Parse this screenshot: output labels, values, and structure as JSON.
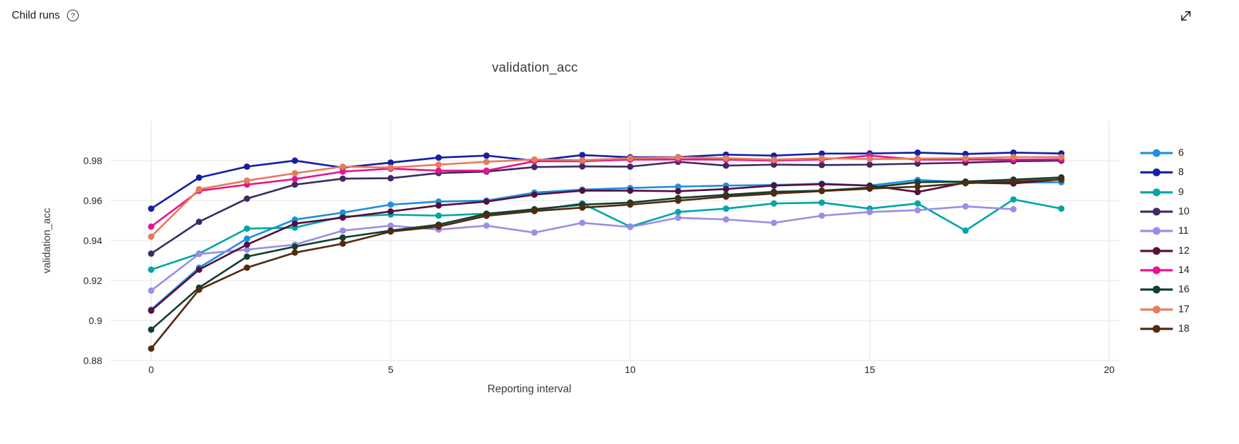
{
  "header": {
    "title": "Child runs",
    "help_icon": "question-mark-circle",
    "expand_icon": "diagonal-expand-arrow"
  },
  "chart_data": {
    "type": "line",
    "title": "validation_acc",
    "xlabel": "Reporting interval",
    "ylabel": "validation_acc",
    "xlim": [
      -0.85,
      20.2
    ],
    "ylim": [
      0.88,
      1.0
    ],
    "x_ticks": [
      0,
      5,
      10,
      15,
      20
    ],
    "x_tick_labels": [
      "0",
      "5",
      "10",
      "15",
      "20"
    ],
    "y_ticks": [
      0.88,
      0.9,
      0.92,
      0.94,
      0.96,
      0.98
    ],
    "y_tick_labels": [
      "0.88",
      "0.9",
      "0.92",
      "0.94",
      "0.96",
      "0.98"
    ],
    "grid": true,
    "grid_color": "#e9e9e9",
    "legend_position": "right",
    "x": [
      0,
      1,
      2,
      3,
      4,
      5,
      6,
      7,
      8,
      9,
      10,
      11,
      12,
      13,
      14,
      15,
      16,
      17,
      18,
      19
    ],
    "series": [
      {
        "name": "6",
        "color": "#1E8FE0",
        "values": [
          0.9055,
          0.9265,
          0.941,
          0.9505,
          0.954,
          0.958,
          0.9595,
          0.96,
          0.964,
          0.9655,
          0.9663,
          0.967,
          0.9675,
          0.9678,
          0.9685,
          0.9675,
          0.9703,
          0.9692,
          0.969,
          0.9692
        ]
      },
      {
        "name": "8",
        "color": "#161FA5",
        "values": [
          0.956,
          0.9715,
          0.977,
          0.98,
          0.9765,
          0.979,
          0.9815,
          0.9825,
          0.98,
          0.9828,
          0.9817,
          0.9818,
          0.983,
          0.9825,
          0.9835,
          0.9836,
          0.984,
          0.9833,
          0.984,
          0.9836
        ]
      },
      {
        "name": "9",
        "color": "#03A5A5",
        "values": [
          0.9255,
          0.9335,
          0.946,
          0.9465,
          0.952,
          0.953,
          0.9525,
          0.9535,
          0.9551,
          0.9586,
          0.947,
          0.9543,
          0.956,
          0.9586,
          0.959,
          0.956,
          0.9586,
          0.945,
          0.9606,
          0.956
        ]
      },
      {
        "name": "10",
        "color": "#3F2B63",
        "values": [
          0.9335,
          0.9494,
          0.961,
          0.968,
          0.971,
          0.9712,
          0.9738,
          0.9745,
          0.9768,
          0.9771,
          0.977,
          0.9794,
          0.9775,
          0.978,
          0.9778,
          0.978,
          0.9785,
          0.979,
          0.9797,
          0.98
        ]
      },
      {
        "name": "11",
        "color": "#9C8DE6",
        "values": [
          0.915,
          0.9333,
          0.9355,
          0.938,
          0.945,
          0.9475,
          0.9455,
          0.9475,
          0.944,
          0.9489,
          0.9468,
          0.9514,
          0.9506,
          0.9489,
          0.9525,
          0.9543,
          0.9552,
          0.9571,
          0.9557
        ]
      },
      {
        "name": "12",
        "color": "#570F3E",
        "values": [
          0.905,
          0.9255,
          0.938,
          0.9485,
          0.9515,
          0.9546,
          0.9576,
          0.9595,
          0.963,
          0.965,
          0.965,
          0.9647,
          0.9658,
          0.9675,
          0.9682,
          0.9675,
          0.9643,
          0.969,
          0.9686,
          0.9707
        ]
      },
      {
        "name": "14",
        "color": "#E6148F",
        "values": [
          0.947,
          0.9649,
          0.968,
          0.9708,
          0.9745,
          0.976,
          0.975,
          0.975,
          0.9797,
          0.9797,
          0.9805,
          0.9806,
          0.9805,
          0.98,
          0.9806,
          0.9825,
          0.9805,
          0.9805,
          0.9805,
          0.9807
        ]
      },
      {
        "name": "16",
        "color": "#123F2D",
        "values": [
          0.8955,
          0.9165,
          0.932,
          0.937,
          0.9415,
          0.945,
          0.948,
          0.9534,
          0.9557,
          0.958,
          0.959,
          0.9613,
          0.9629,
          0.9644,
          0.965,
          0.9665,
          0.9692,
          0.9695,
          0.9705,
          0.9716
        ]
      },
      {
        "name": "17",
        "color": "#E57C5C",
        "values": [
          0.942,
          0.9657,
          0.97,
          0.9737,
          0.977,
          0.9765,
          0.978,
          0.9794,
          0.9806,
          0.9802,
          0.9812,
          0.9817,
          0.9812,
          0.9805,
          0.9812,
          0.9808,
          0.981,
          0.9812,
          0.9818,
          0.9818
        ]
      },
      {
        "name": "18",
        "color": "#522A0F",
        "values": [
          0.886,
          0.9155,
          0.9265,
          0.934,
          0.9385,
          0.9445,
          0.947,
          0.9524,
          0.9548,
          0.9565,
          0.958,
          0.96,
          0.962,
          0.9635,
          0.9648,
          0.966,
          0.967,
          0.9687,
          0.9695,
          0.9705
        ]
      }
    ]
  }
}
